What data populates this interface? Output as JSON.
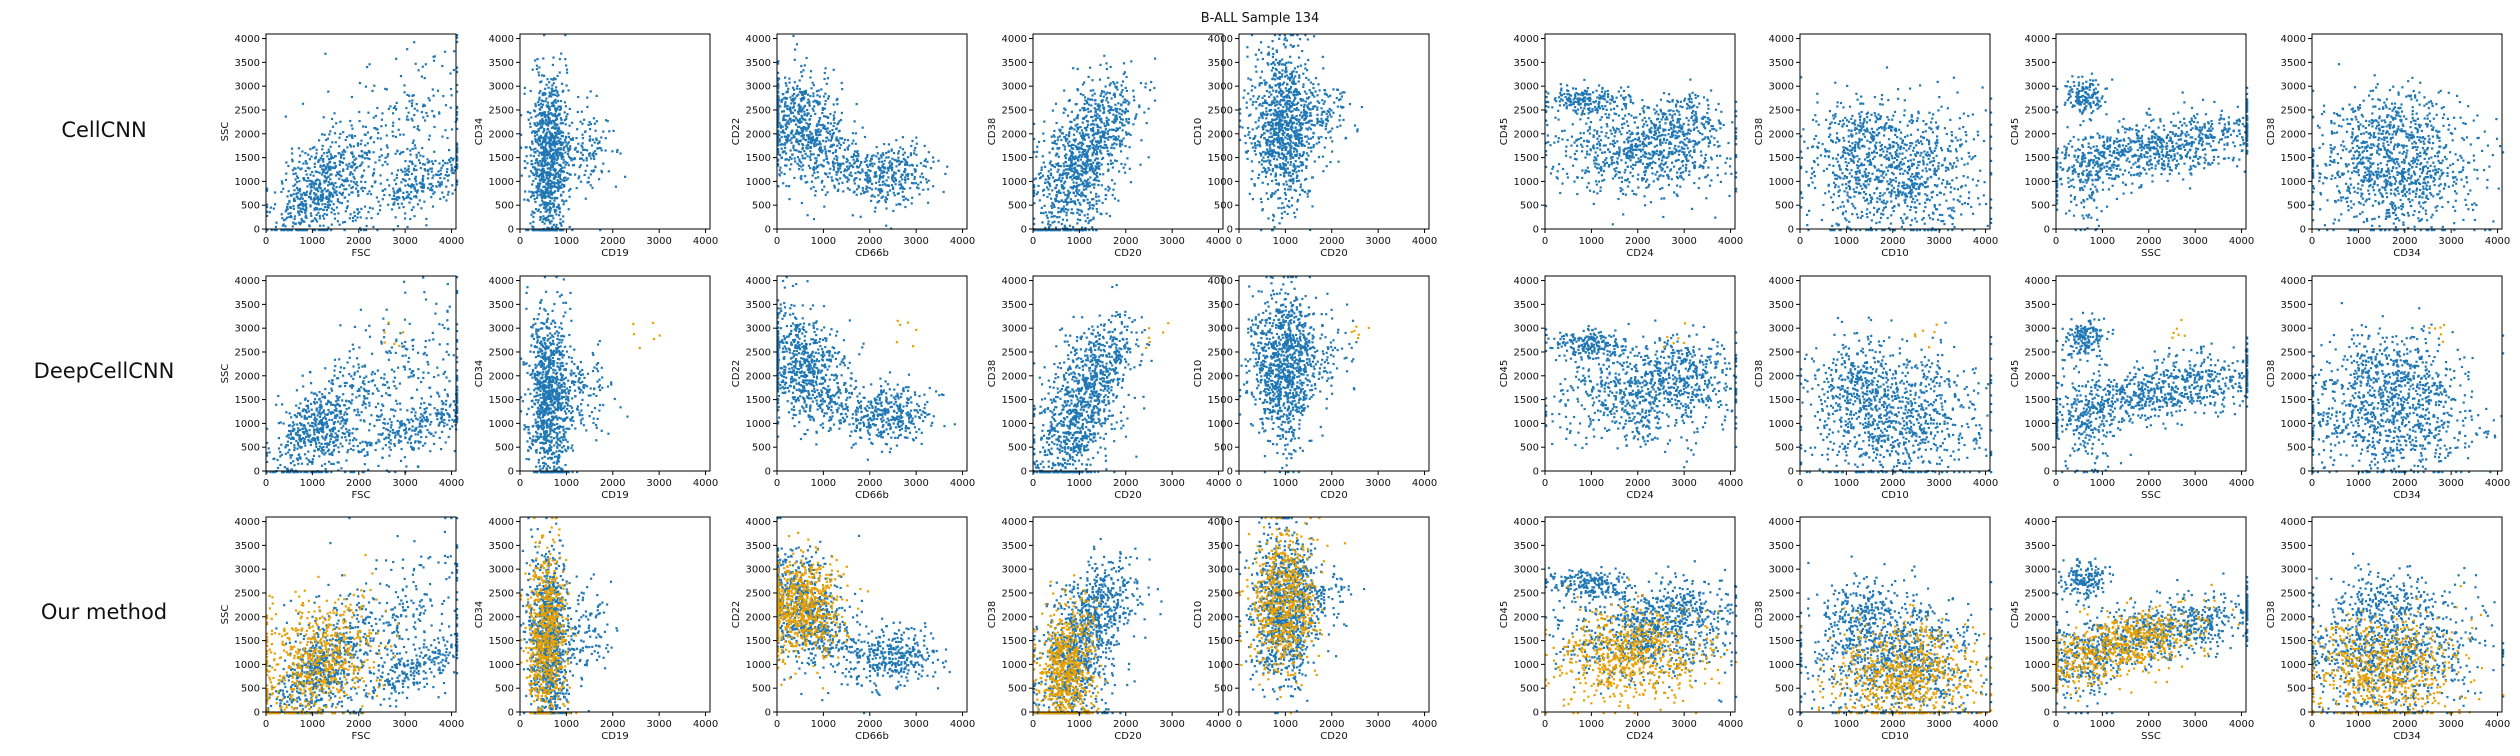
{
  "figure": {
    "suptitle": "B-ALL Sample 134",
    "row_labels": [
      "CellCNN",
      "DeepCellCNN",
      "Our method"
    ]
  },
  "colors": {
    "blue": "#1f77b4",
    "orange": "#e8a000"
  },
  "chart_data": {
    "type": "scatter",
    "title": "B-ALL Sample 134",
    "grid": false,
    "xlim": [
      0,
      4096
    ],
    "ylim": [
      0,
      4096
    ],
    "xticks": [
      0,
      1000,
      2000,
      3000,
      4000
    ],
    "yticks": [
      0,
      500,
      1000,
      1500,
      2000,
      2500,
      3000,
      3500,
      4000
    ],
    "rows": [
      "CellCNN",
      "DeepCellCNN",
      "Our method"
    ],
    "panels": [
      {
        "xlabel": "FSC",
        "ylabel": "SSC"
      },
      {
        "xlabel": "CD19",
        "ylabel": "CD34"
      },
      {
        "xlabel": "CD66b",
        "ylabel": "CD22"
      },
      {
        "xlabel": "CD20",
        "ylabel": "CD38"
      },
      {
        "xlabel": "CD20",
        "ylabel": "CD10"
      },
      {
        "xlabel": "CD24",
        "ylabel": "CD45"
      },
      {
        "xlabel": "CD10",
        "ylabel": "CD38"
      },
      {
        "xlabel": "SSC",
        "ylabel": "CD45"
      },
      {
        "xlabel": "CD34",
        "ylabel": "CD38"
      }
    ]
  }
}
